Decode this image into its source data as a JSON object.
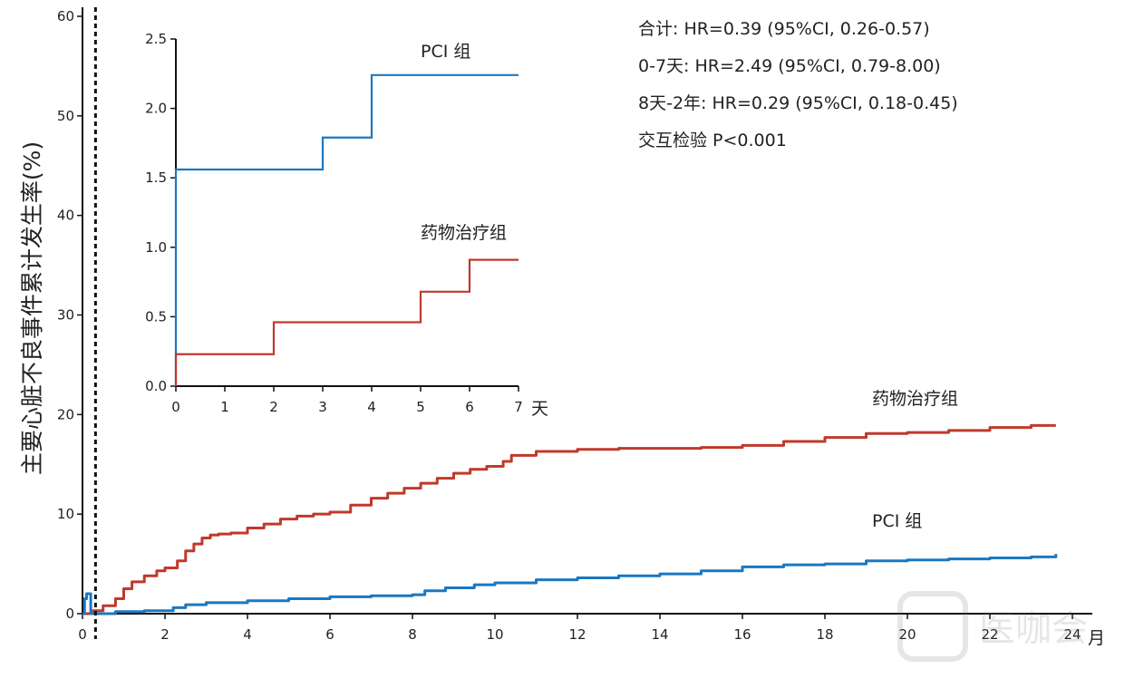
{
  "chart_data": [
    {
      "type": "line",
      "step": true,
      "ylabel": "主要心脏不良事件累计发生率(%)",
      "xlabel": "月",
      "xlim": [
        0,
        24
      ],
      "ylim": [
        0,
        60
      ],
      "xticks": [
        0,
        2,
        4,
        6,
        8,
        10,
        12,
        14,
        16,
        18,
        20,
        22,
        24
      ],
      "yticks": [
        0,
        10,
        20,
        30,
        40,
        50,
        60
      ],
      "cutoff_x": 0.25,
      "series": [
        {
          "name": "药物治疗组",
          "color": "#c0392b",
          "x": [
            0,
            0.25,
            0.5,
            0.8,
            1.0,
            1.2,
            1.5,
            1.8,
            2.0,
            2.3,
            2.5,
            2.7,
            2.9,
            3.1,
            3.3,
            3.6,
            4.0,
            4.4,
            4.8,
            5.2,
            5.6,
            6.0,
            6.5,
            7.0,
            7.4,
            7.8,
            8.2,
            8.6,
            9.0,
            9.4,
            9.8,
            10.2,
            10.4,
            11.0,
            12.0,
            13.0,
            14.0,
            15.0,
            16.0,
            17.0,
            18.0,
            19.0,
            20.0,
            21.0,
            22.0,
            23.0,
            23.6
          ],
          "y": [
            0,
            0.3,
            0.8,
            1.5,
            2.5,
            3.2,
            3.8,
            4.3,
            4.6,
            5.3,
            6.3,
            7.0,
            7.6,
            7.9,
            8.0,
            8.1,
            8.6,
            9.0,
            9.5,
            9.8,
            10.0,
            10.2,
            10.9,
            11.6,
            12.1,
            12.6,
            13.1,
            13.6,
            14.1,
            14.5,
            14.8,
            15.3,
            15.9,
            16.3,
            16.5,
            16.6,
            16.6,
            16.7,
            16.9,
            17.3,
            17.7,
            18.1,
            18.2,
            18.4,
            18.7,
            18.9,
            18.9
          ]
        },
        {
          "name": "PCI 组",
          "color": "#1a78c2",
          "x": [
            0,
            0.05,
            0.1,
            0.2,
            0.3,
            0.8,
            1.5,
            2.2,
            2.5,
            3.0,
            4.0,
            5.0,
            6.0,
            7.0,
            8.0,
            8.3,
            8.8,
            9.5,
            10.0,
            11.0,
            12.0,
            13.0,
            14.0,
            15.0,
            16.0,
            17.0,
            18.0,
            19.0,
            20.0,
            21.0,
            22.0,
            23.0,
            23.6
          ],
          "y": [
            0,
            1.5,
            2.0,
            0,
            0,
            0.2,
            0.3,
            0.6,
            0.9,
            1.1,
            1.3,
            1.5,
            1.7,
            1.8,
            1.9,
            2.3,
            2.6,
            2.9,
            3.1,
            3.4,
            3.6,
            3.8,
            4.0,
            4.3,
            4.7,
            4.9,
            5.0,
            5.3,
            5.4,
            5.5,
            5.6,
            5.7,
            6.0
          ]
        }
      ]
    },
    {
      "type": "line",
      "step": true,
      "xlabel": "天",
      "xlim": [
        0,
        7
      ],
      "ylim": [
        0,
        2.5
      ],
      "xticks": [
        0,
        1,
        2,
        3,
        4,
        5,
        6,
        7
      ],
      "yticks": [
        "0.0",
        "0.5",
        "1.0",
        "1.5",
        "2.0",
        "2.5"
      ],
      "series": [
        {
          "name": "PCI 组",
          "color": "#1a78c2",
          "x": [
            0,
            0,
            3,
            4,
            7
          ],
          "y": [
            0,
            1.56,
            1.79,
            2.24,
            2.24
          ]
        },
        {
          "name": "药物治疗组",
          "color": "#c0392b",
          "x": [
            0,
            0,
            2,
            5,
            6,
            7
          ],
          "y": [
            0,
            0.23,
            0.46,
            0.68,
            0.91,
            0.91
          ]
        }
      ]
    }
  ],
  "stats": [
    "合计: HR=0.39 (95%CI, 0.26-0.57)",
    "0-7天: HR=2.49 (95%CI, 0.79-8.00)",
    "8天-2年: HR=0.29 (95%CI, 0.18-0.45)",
    "交互检验 P<0.001"
  ],
  "labels": {
    "main_medical": "药物治疗组",
    "main_pci": "PCI 组",
    "inset_pci": "PCI 组",
    "inset_medical": "药物治疗组"
  },
  "watermark": "医咖会"
}
